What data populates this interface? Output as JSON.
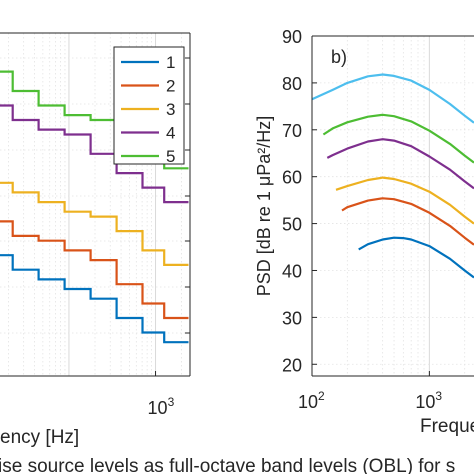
{
  "caption_text": "ise source levels as full-octave band levels (OBL) for s",
  "chart_data": [
    {
      "panel": "a",
      "type": "line",
      "step": true,
      "xscale": "log",
      "xlim": [
        16,
        2500
      ],
      "ylim": [
        22,
        93
      ],
      "xlabel_visible": "ency [Hz]",
      "xtick_labels": [
        {
          "base": "10",
          "exp": "3",
          "x": 1000
        }
      ],
      "grid": true,
      "legend": {
        "placement": "top-right",
        "entries": [
          "1",
          "2",
          "3",
          "4",
          "5"
        ]
      },
      "series": [
        {
          "name": "1",
          "color": "#0072BD",
          "x": [
            16,
            22.4,
            22.4,
            44.7,
            44.7,
            89.1,
            89.1,
            178,
            178,
            355,
            355,
            708,
            708,
            1259,
            1259,
            2400
          ],
          "y": [
            47,
            47,
            44,
            44,
            42,
            42,
            40,
            40,
            38,
            38,
            34,
            34,
            31,
            31,
            29,
            29
          ]
        },
        {
          "name": "2",
          "color": "#D95319",
          "x": [
            16,
            22.4,
            22.4,
            44.7,
            44.7,
            89.1,
            89.1,
            178,
            178,
            355,
            355,
            708,
            708,
            1259,
            1259,
            2400
          ],
          "y": [
            54,
            54,
            51,
            51,
            50,
            50,
            48,
            48,
            46,
            46,
            41,
            41,
            37,
            37,
            34,
            34
          ]
        },
        {
          "name": "3",
          "color": "#EDB120",
          "x": [
            16,
            22.4,
            22.4,
            44.7,
            44.7,
            89.1,
            89.1,
            178,
            178,
            355,
            355,
            708,
            708,
            1259,
            1259,
            2400
          ],
          "y": [
            62,
            62,
            60,
            60,
            58,
            58,
            56,
            56,
            55,
            55,
            52,
            52,
            48,
            48,
            45,
            45
          ]
        },
        {
          "name": "4",
          "color": "#7E2F8E",
          "x": [
            16,
            22.4,
            22.4,
            44.7,
            44.7,
            89.1,
            89.1,
            178,
            178,
            355,
            355,
            708,
            708,
            1259,
            1259,
            2400
          ],
          "y": [
            78,
            78,
            75,
            75,
            73,
            73,
            72,
            72,
            68,
            68,
            64,
            64,
            61,
            61,
            58,
            58
          ]
        },
        {
          "name": "5",
          "color": "#4DBD33",
          "x": [
            16,
            22.4,
            22.4,
            44.7,
            44.7,
            89.1,
            89.1,
            178,
            178,
            355,
            355,
            708,
            708,
            1259,
            1259,
            2400
          ],
          "y": [
            85,
            85,
            81,
            81,
            78,
            78,
            76,
            76,
            75,
            75,
            71,
            71,
            68,
            68,
            65,
            65
          ]
        }
      ]
    },
    {
      "panel": "b",
      "panel_label": "b)",
      "type": "line",
      "xscale": "log",
      "xlim": [
        100,
        2400
      ],
      "ylim": [
        17.5,
        90
      ],
      "ylabel": "PSD [dB re 1 μPa²/Hz]",
      "xlabel_visible": "Freque",
      "ytick_labels": [
        "20",
        "30",
        "40",
        "50",
        "60",
        "70",
        "80",
        "90"
      ],
      "ytick_values": [
        20,
        30,
        40,
        50,
        60,
        70,
        80,
        90
      ],
      "xtick_labels": [
        {
          "base": "10",
          "exp": "2",
          "x": 100
        },
        {
          "base": "10",
          "exp": "3",
          "x": 1000
        }
      ],
      "grid": true,
      "series": [
        {
          "color": "#4DBEEE",
          "x": [
            100,
            150,
            200,
            300,
            400,
            500,
            700,
            1000,
            1500,
            2000,
            2400
          ],
          "y": [
            76.5,
            78.5,
            80,
            81.4,
            81.8,
            81.5,
            80.5,
            78.5,
            75.5,
            73,
            71.5
          ]
        },
        {
          "color": "#4DBD33",
          "x": [
            125,
            150,
            200,
            300,
            400,
            500,
            700,
            1000,
            1500,
            2000,
            2400
          ],
          "y": [
            69,
            70.3,
            71.6,
            72.8,
            73.2,
            72.9,
            71.8,
            69.8,
            67,
            64.5,
            63
          ]
        },
        {
          "color": "#7E2F8E",
          "x": [
            135,
            150,
            200,
            300,
            400,
            500,
            700,
            1000,
            1500,
            2000,
            2400
          ],
          "y": [
            64,
            64.6,
            66,
            67.5,
            68,
            67.7,
            66.5,
            64.3,
            61.5,
            59,
            57.5
          ]
        },
        {
          "color": "#EDB120",
          "x": [
            160,
            200,
            300,
            400,
            500,
            700,
            1000,
            1500,
            2000,
            2400
          ],
          "y": [
            57.2,
            58,
            59.3,
            59.8,
            59.5,
            58.5,
            56.8,
            54,
            51.5,
            50
          ]
        },
        {
          "color": "#D95319",
          "x": [
            180,
            200,
            300,
            400,
            500,
            700,
            1000,
            1500,
            2000,
            2400
          ],
          "y": [
            52.8,
            53.5,
            54.9,
            55.4,
            55.2,
            54.2,
            52.3,
            49.5,
            47,
            45.5
          ]
        },
        {
          "color": "#0072BD",
          "x": [
            250,
            300,
            400,
            500,
            600,
            700,
            1000,
            1500,
            2000,
            2400
          ],
          "y": [
            44.5,
            45.6,
            46.6,
            47,
            46.9,
            46.6,
            45.2,
            42.5,
            40,
            38.5
          ]
        }
      ]
    }
  ]
}
